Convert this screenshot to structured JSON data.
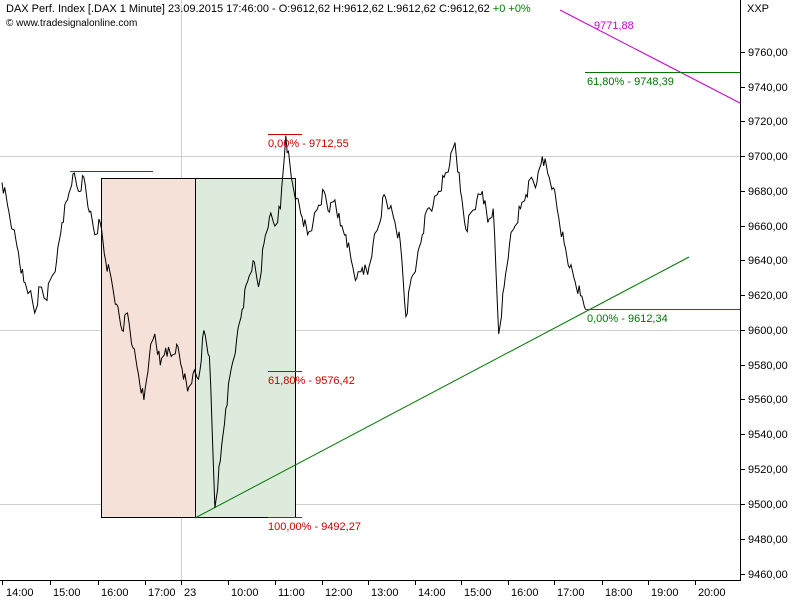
{
  "header": {
    "title": "DAX Perf. Index [.DAX  1 Minute] 23.09.2015 17:46:00 - O:9612,62 H:9612,62 L:9612,62 C:9612,62",
    "change": "+0 +0%",
    "website": "© www.tradesignalonline.com",
    "symbol": "XXP"
  },
  "colors": {
    "price": "#000000",
    "red": "#cc0000",
    "green": "#007700",
    "magenta": "#cc00cc",
    "grid": "#cfcfcf",
    "box_red_fill": "#f6e1d8",
    "box_green_fill": "#dcebdc"
  },
  "chart_data": {
    "type": "line",
    "title": "DAX Perf. Index [.DAX  1 Minute]",
    "ylim": [
      9455,
      9775
    ],
    "y_ticks": [
      "9760,00",
      "9740,00",
      "9720,00",
      "9700,00",
      "9680,00",
      "9660,00",
      "9640,00",
      "9620,00",
      "9600,00",
      "9580,00",
      "9560,00",
      "9540,00",
      "9520,00",
      "9500,00",
      "9480,00",
      "9460,00"
    ],
    "x_ticks": [
      "14:00",
      "15:00",
      "16:00",
      "17:00",
      "23",
      "10:00",
      "11:00",
      "12:00",
      "13:00",
      "14:00",
      "15:00",
      "16:00",
      "17:00",
      "18:00",
      "19:00",
      "20:00"
    ],
    "grid": "horizontal lines at 9700, 9600, 9500; vertical session divider at 23",
    "series": [
      {
        "points": [
          [
            0,
            9685
          ],
          [
            1,
            9672
          ],
          [
            2,
            9658
          ],
          [
            3,
            9645
          ],
          [
            4,
            9628
          ],
          [
            5,
            9622
          ],
          [
            6,
            9610
          ],
          [
            7,
            9625
          ],
          [
            8,
            9618
          ],
          [
            9,
            9630
          ],
          [
            10,
            9640
          ],
          [
            11,
            9662
          ],
          [
            12,
            9675
          ],
          [
            13,
            9690
          ],
          [
            14,
            9680
          ],
          [
            15,
            9688
          ],
          [
            16,
            9668
          ],
          [
            17,
            9655
          ],
          [
            18,
            9662
          ],
          [
            19,
            9640
          ],
          [
            20,
            9630
          ],
          [
            21,
            9615
          ],
          [
            22,
            9600
          ],
          [
            23,
            9610
          ],
          [
            24,
            9590
          ],
          [
            25,
            9575
          ],
          [
            26,
            9560
          ],
          [
            27,
            9585
          ],
          [
            28,
            9598
          ],
          [
            29,
            9580
          ],
          [
            30,
            9590
          ],
          [
            31,
            9585
          ],
          [
            32,
            9592
          ],
          [
            33,
            9578
          ],
          [
            34,
            9565
          ],
          [
            35,
            9575
          ],
          [
            36,
            9572
          ],
          [
            37,
            9600
          ],
          [
            38,
            9585
          ],
          [
            39,
            9498
          ],
          [
            40,
            9525
          ],
          [
            41,
            9555
          ],
          [
            42,
            9578
          ],
          [
            43,
            9595
          ],
          [
            44,
            9612
          ],
          [
            45,
            9628
          ],
          [
            46,
            9640
          ],
          [
            47,
            9625
          ],
          [
            48,
            9650
          ],
          [
            49,
            9665
          ],
          [
            50,
            9660
          ],
          [
            51,
            9670
          ],
          [
            52,
            9712
          ],
          [
            53,
            9688
          ],
          [
            54,
            9676
          ],
          [
            55,
            9665
          ],
          [
            56,
            9655
          ],
          [
            57,
            9662
          ],
          [
            58,
            9672
          ],
          [
            59,
            9680
          ],
          [
            60,
            9668
          ],
          [
            61,
            9675
          ],
          [
            62,
            9660
          ],
          [
            63,
            9655
          ],
          [
            64,
            9640
          ],
          [
            65,
            9630
          ],
          [
            66,
            9636
          ],
          [
            67,
            9632
          ],
          [
            68,
            9650
          ],
          [
            69,
            9660
          ],
          [
            70,
            9678
          ],
          [
            71,
            9670
          ],
          [
            72,
            9662
          ],
          [
            73,
            9650
          ],
          [
            74,
            9608
          ],
          [
            75,
            9630
          ],
          [
            76,
            9640
          ],
          [
            77,
            9655
          ],
          [
            78,
            9670
          ],
          [
            79,
            9672
          ],
          [
            80,
            9680
          ],
          [
            81,
            9688
          ],
          [
            82,
            9695
          ],
          [
            83,
            9708
          ],
          [
            84,
            9680
          ],
          [
            85,
            9658
          ],
          [
            86,
            9668
          ],
          [
            87,
            9675
          ],
          [
            88,
            9680
          ],
          [
            89,
            9662
          ],
          [
            90,
            9670
          ],
          [
            91,
            9598
          ],
          [
            92,
            9625
          ],
          [
            93,
            9650
          ],
          [
            94,
            9660
          ],
          [
            95,
            9670
          ],
          [
            96,
            9678
          ],
          [
            97,
            9688
          ],
          [
            98,
            9685
          ],
          [
            99,
            9700
          ],
          [
            100,
            9690
          ],
          [
            101,
            9682
          ],
          [
            102,
            9665
          ],
          [
            103,
            9650
          ],
          [
            104,
            9636
          ],
          [
            105,
            9628
          ],
          [
            106,
            9620
          ],
          [
            107,
            9612.62
          ]
        ]
      }
    ],
    "annotations": [
      {
        "text": "0,00% - 9712,55",
        "value": 9712.55,
        "color": "red"
      },
      {
        "text": "61,80% - 9576,42",
        "value": 9576.42,
        "color": "red"
      },
      {
        "text": "100,00% - 9492,27",
        "value": 9492.27,
        "color": "red"
      },
      {
        "text": "9771,88",
        "value": 9771.88,
        "color": "magenta"
      },
      {
        "text": "61,80% - 9748,39",
        "value": 9748.39,
        "color": "green"
      },
      {
        "text": "0,00% - 9612,34",
        "value": 9612.34,
        "color": "green"
      }
    ]
  }
}
